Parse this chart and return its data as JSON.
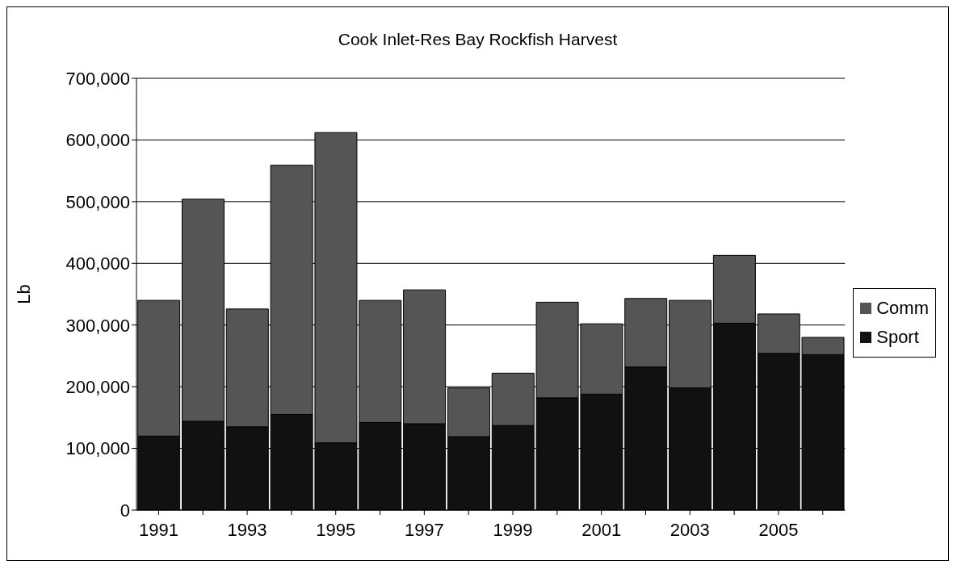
{
  "chart_data": {
    "type": "bar",
    "title": "Cook Inlet-Res Bay Rockfish Harvest",
    "ylabel": "Lb",
    "categories": [
      "1991",
      null,
      "1993",
      null,
      "1995",
      null,
      "1997",
      null,
      "1999",
      null,
      "2001",
      null,
      "2003",
      null,
      "2005",
      null
    ],
    "stacked": true,
    "series": [
      {
        "name": "Sport",
        "color": "#111111",
        "values": [
          120000,
          144000,
          135000,
          155000,
          109000,
          142000,
          140000,
          119000,
          137000,
          182000,
          188000,
          232000,
          198000,
          303000,
          254000,
          252000
        ]
      },
      {
        "name": "Comm",
        "color": "#555555",
        "values": [
          220000,
          360000,
          191000,
          404000,
          503000,
          198000,
          217000,
          79000,
          85000,
          155000,
          114000,
          111000,
          142000,
          110000,
          64000,
          28000
        ]
      }
    ],
    "ylim": [
      0,
      700000
    ],
    "yticks": [
      0,
      {
        "value": 100000,
        "label": "100,000"
      },
      {
        "value": 200000,
        "label": "200,000"
      },
      {
        "value": 300000,
        "label": "300,000"
      },
      {
        "value": 400000,
        "label": "400,000"
      },
      {
        "value": 500000,
        "label": "500,000"
      },
      {
        "value": 600000,
        "label": "600,000"
      },
      {
        "value": 700000,
        "label": "700,000"
      }
    ],
    "grid": "y",
    "legend": "right"
  }
}
